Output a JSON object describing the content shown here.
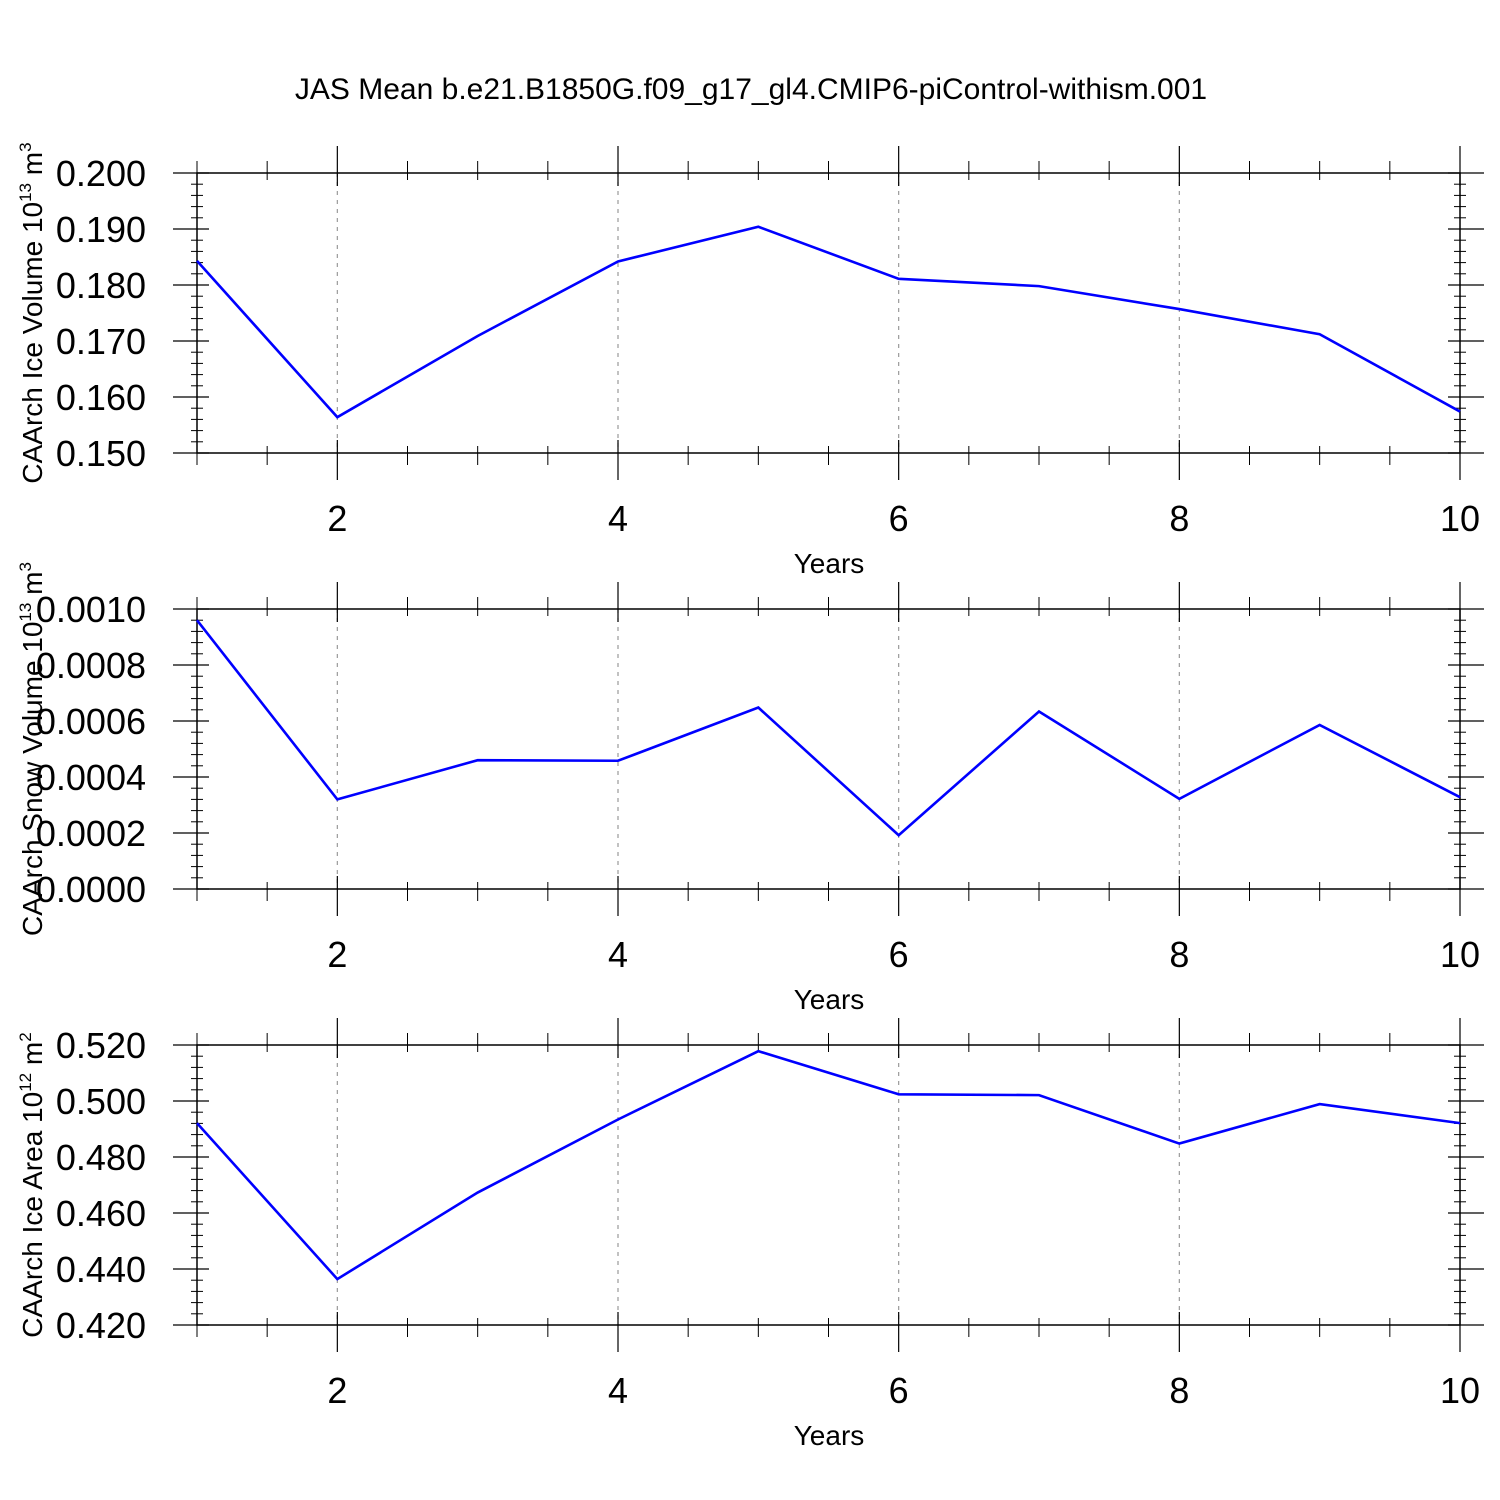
{
  "title": "JAS Mean b.e21.B1850G.f09_g17_gl4.CMIP6-piControl-withism.001",
  "colors": {
    "line": "#0000ff",
    "axis": "#000000",
    "grid": "#999999"
  },
  "chart_data": [
    {
      "type": "line",
      "xlabel": "Years",
      "ylabel": {
        "text": "CAArch Ice Volume 10",
        "exp": "13",
        "unit": " m",
        "unit_exp": "3"
      },
      "x": [
        1,
        2,
        3,
        4,
        5,
        6,
        7,
        8,
        9,
        10
      ],
      "y": [
        0.1843,
        0.1564,
        0.1709,
        0.1842,
        0.1904,
        0.1811,
        0.1798,
        0.1757,
        0.1712,
        0.1574
      ],
      "xlim": [
        1,
        10
      ],
      "ylim": [
        0.15,
        0.2
      ],
      "xticks": [
        2,
        4,
        6,
        8,
        10
      ],
      "xtick_labels": [
        "2",
        "4",
        "6",
        "8",
        "10"
      ],
      "yticks": [
        0.15,
        0.16,
        0.17,
        0.18,
        0.19,
        0.2
      ],
      "ytick_labels": [
        "0.150",
        "0.160",
        "0.170",
        "0.180",
        "0.190",
        "0.200"
      ],
      "grid": "vertical dashed at major x ticks"
    },
    {
      "type": "line",
      "xlabel": "Years",
      "ylabel": {
        "text": "CAArch Snow Volume 10",
        "exp": "13",
        "unit": " m",
        "unit_exp": "3"
      },
      "x": [
        1,
        2,
        3,
        4,
        5,
        6,
        7,
        8,
        9,
        10
      ],
      "y": [
        0.00096,
        0.00032,
        0.00046,
        0.000458,
        0.000648,
        0.000192,
        0.000634,
        0.000322,
        0.000586,
        0.000328
      ],
      "xlim": [
        1,
        10
      ],
      "ylim": [
        0,
        0.001
      ],
      "xticks": [
        2,
        4,
        6,
        8,
        10
      ],
      "xtick_labels": [
        "2",
        "4",
        "6",
        "8",
        "10"
      ],
      "yticks": [
        0,
        0.0002,
        0.0004,
        0.0006,
        0.0008,
        0.001
      ],
      "ytick_labels": [
        "0.0000",
        "0.0002",
        "0.0004",
        "0.0006",
        "0.0008",
        "0.0010"
      ],
      "grid": "vertical dashed at major x ticks"
    },
    {
      "type": "line",
      "xlabel": "Years",
      "ylabel": {
        "text": "CAArch Ice Area 10",
        "exp": "12",
        "unit": " m",
        "unit_exp": "2"
      },
      "x": [
        1,
        2,
        3,
        4,
        5,
        6,
        7,
        8,
        9,
        10
      ],
      "y": [
        0.4921,
        0.4364,
        0.4673,
        0.4934,
        0.5178,
        0.5024,
        0.5021,
        0.4848,
        0.4989,
        0.4921
      ],
      "xlim": [
        1,
        10
      ],
      "ylim": [
        0.42,
        0.52
      ],
      "xticks": [
        2,
        4,
        6,
        8,
        10
      ],
      "xtick_labels": [
        "2",
        "4",
        "6",
        "8",
        "10"
      ],
      "yticks": [
        0.42,
        0.44,
        0.46,
        0.48,
        0.5,
        0.52
      ],
      "ytick_labels": [
        "0.420",
        "0.440",
        "0.460",
        "0.480",
        "0.500",
        "0.520"
      ],
      "grid": "vertical dashed at major x ticks"
    }
  ]
}
